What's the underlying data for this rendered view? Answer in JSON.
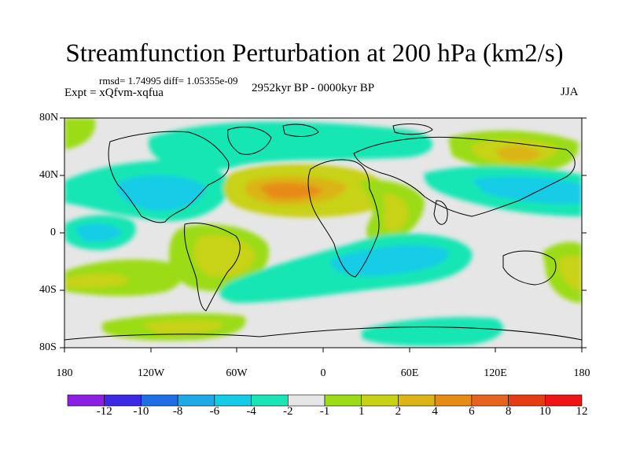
{
  "title": "Streamfunction Perturbation at 200 hPa (km2/s)",
  "stats": "rmsd= 1.74995 diff= 1.05355e-09",
  "experiment": "Expt = xQfvm-xqfua",
  "period": "2952kyr BP - 0000kyr BP",
  "season": "JJA",
  "lat_labels": [
    "80N",
    "40N",
    "0",
    "40S",
    "80S"
  ],
  "lon_labels": [
    "180",
    "120W",
    "60W",
    "0",
    "60E",
    "120E",
    "180"
  ],
  "colorbar": {
    "labels": [
      "-12",
      "-10",
      "-8",
      "-6",
      "-4",
      "-2",
      "-1",
      "1",
      "2",
      "4",
      "6",
      "8",
      "10",
      "12"
    ],
    "colors": [
      "#8c1ee6",
      "#3c28e6",
      "#1e6ee6",
      "#1eaae6",
      "#14cce6",
      "#19e6b4",
      "#e6e6e6",
      "#9bdc14",
      "#c8d214",
      "#dcb414",
      "#e68c14",
      "#e6641e",
      "#e63c14",
      "#f01414"
    ]
  }
}
